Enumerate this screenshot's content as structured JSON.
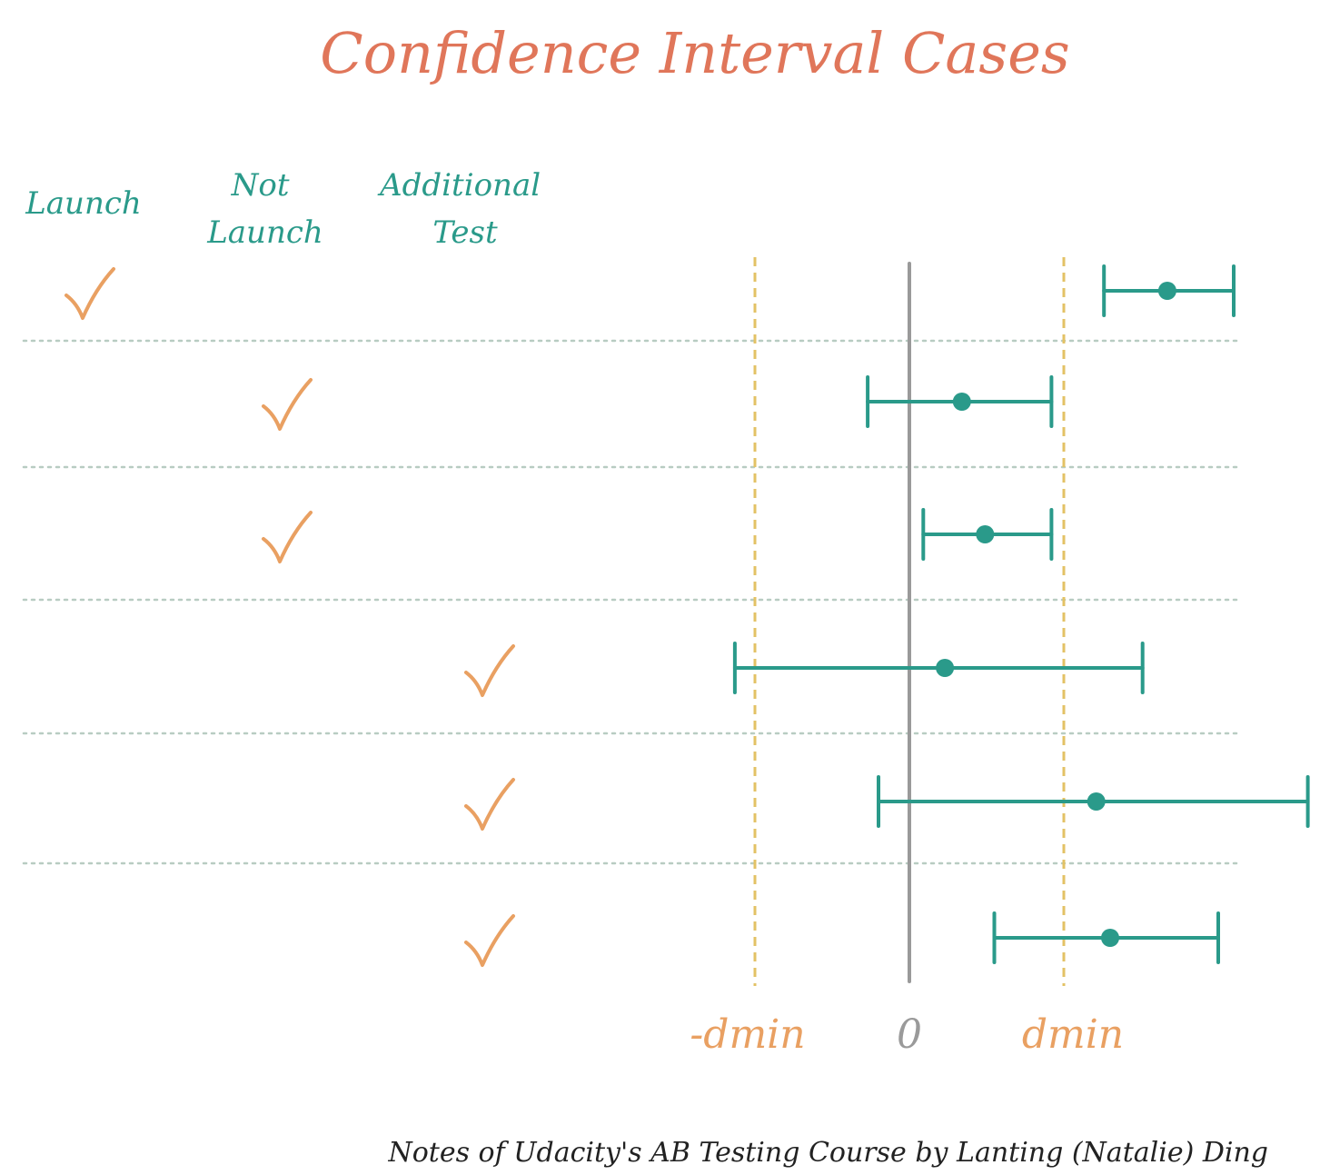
{
  "title": "Confidence Interval Cases",
  "columns": [
    {
      "lines": [
        "Launch"
      ]
    },
    {
      "lines": [
        "Not",
        "Launch"
      ]
    },
    {
      "lines": [
        "Additional",
        "Test"
      ]
    }
  ],
  "axis_labels": {
    "neg_dmin": "-dmin",
    "zero": "0",
    "dmin": "dmin"
  },
  "credit": "Notes of Udacity's AB Testing Course by Lanting (Natalie) Ding",
  "colors": {
    "title": "#e0765a",
    "header": "#2a9a8a",
    "check": "#e9a062",
    "interval": "#2a9a8a",
    "zero_line": "#9a9a9a",
    "dmin_line": "#e3c265",
    "dmin_label": "#e9a062",
    "zero_label": "#9a9a9a",
    "separator": "#b8ccc2"
  },
  "chart_data": {
    "type": "scatter",
    "x_reference": {
      "neg_dmin": -1,
      "zero": 0,
      "dmin": 1
    },
    "cases": [
      {
        "decision_column": 0,
        "lower": 1.26,
        "estimate": 1.67,
        "upper": 2.1
      },
      {
        "decision_column": 1,
        "lower": -0.27,
        "estimate": 0.34,
        "upper": 0.92
      },
      {
        "decision_column": 1,
        "lower": 0.09,
        "estimate": 0.49,
        "upper": 0.92
      },
      {
        "decision_column": 2,
        "lower": -1.13,
        "estimate": 0.23,
        "upper": 1.51
      },
      {
        "decision_column": 2,
        "lower": -0.2,
        "estimate": 1.21,
        "upper": 2.58
      },
      {
        "decision_column": 2,
        "lower": 0.55,
        "estimate": 1.3,
        "upper": 2.0
      }
    ]
  }
}
